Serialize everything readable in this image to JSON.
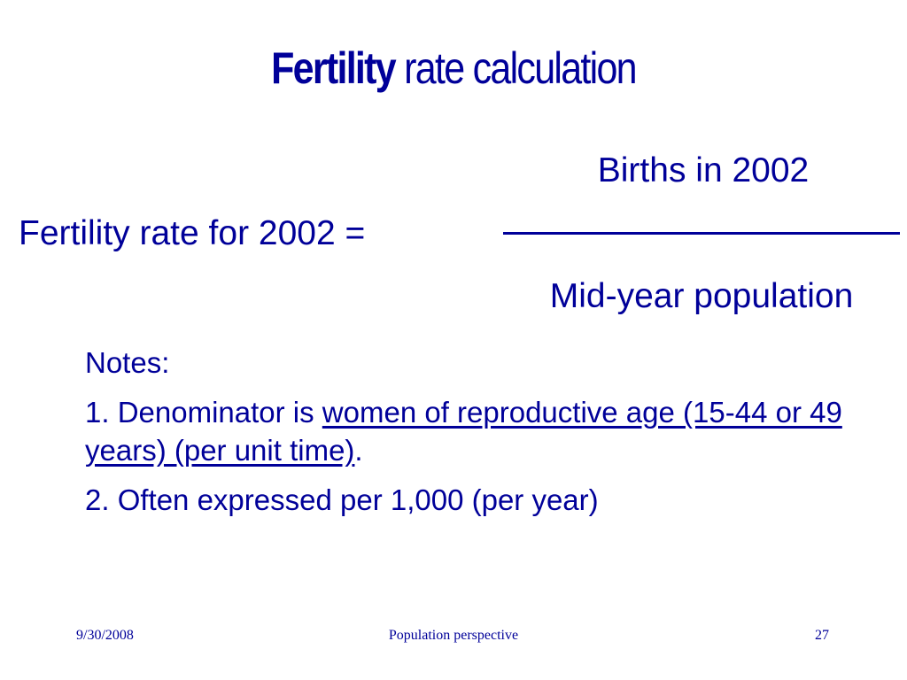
{
  "slide": {
    "title_bold": "Fertility",
    "title_rest": " rate calculation",
    "formula": {
      "lhs": "Fertility rate for 2002  =",
      "numerator": "Births in 2002",
      "denominator": "Mid-year population"
    },
    "notes": {
      "heading": "Notes:",
      "item1_prefix": "1.  Denominator is ",
      "item1_underlined": "women of reproductive age (15-44 or 49 years) (per unit time)",
      "item1_suffix": ".",
      "item2": "2.  Often expressed per 1,000 (per year)"
    },
    "footer": {
      "date": "9/30/2008",
      "center": "Population perspective",
      "page": "27"
    },
    "colors": {
      "text": "#000099",
      "background": "#ffffff"
    }
  }
}
